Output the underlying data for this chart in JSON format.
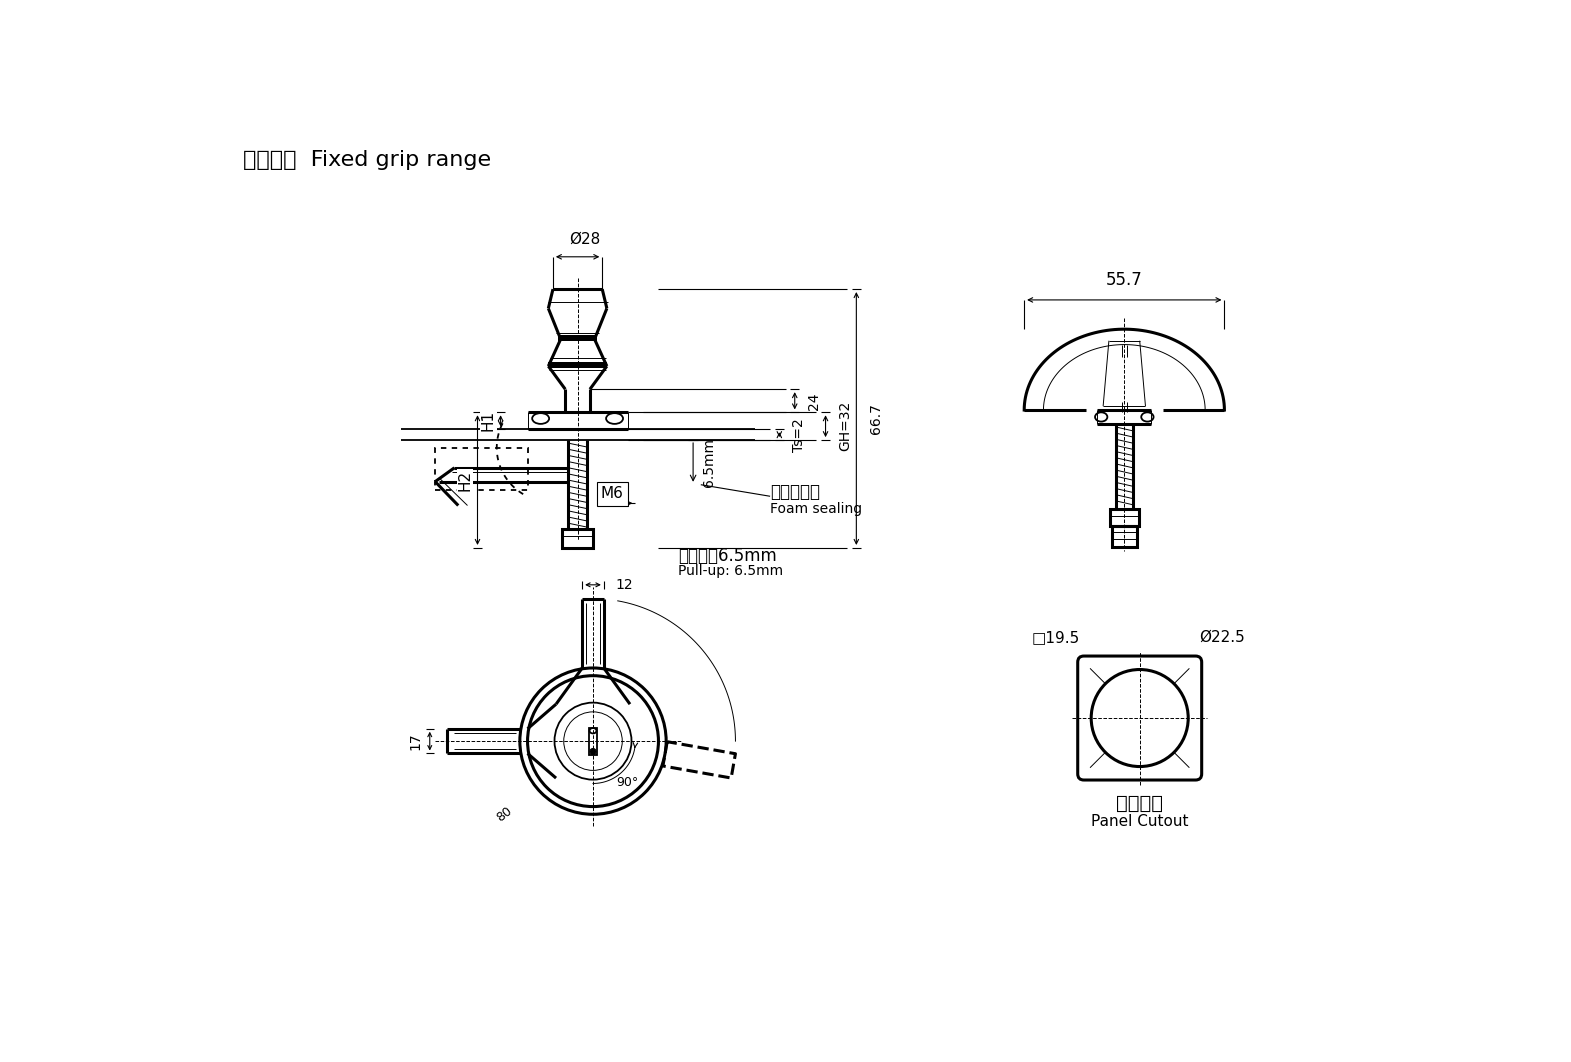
{
  "title_cn": "固定间距",
  "title_en": "Fixed grip range",
  "bg_color": "#ffffff",
  "line_color": "#000000",
  "labels": {
    "dim_28": "Ø28",
    "dim_55_7": "55.7",
    "dim_H1": "H1",
    "dim_H2": "H2",
    "dim_Ts2": "Ts=2",
    "dim_GH32": "GH=32",
    "dim_66_7": "66.7",
    "dim_24": "24",
    "dim_M6": "M6",
    "dim_6_5": "6.5mm",
    "dim_12": "12",
    "dim_17": "17",
    "dim_90": "90°",
    "dim_80": "80",
    "foam_cn": "发泡橡胶垫",
    "foam_en": "Foam sealing",
    "pullup_cn": "压缩量：6.5mm",
    "pullup_en": "Pull-up: 6.5mm",
    "cutout_cn": "开孔尺寸",
    "cutout_en": "Panel Cutout",
    "dim_19_5": "□19.5",
    "dim_22_5": "Ø22.5"
  }
}
